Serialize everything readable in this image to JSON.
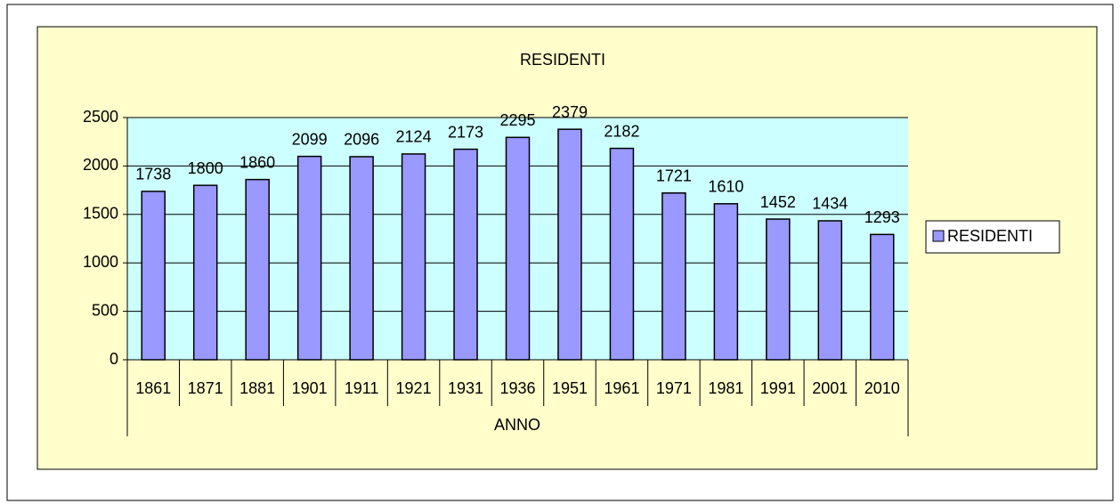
{
  "chart_data": {
    "type": "bar",
    "title": "RESIDENTI",
    "x_label": "ANNO",
    "categories": [
      "1861",
      "1871",
      "1881",
      "1901",
      "1911",
      "1921",
      "1931",
      "1936",
      "1951",
      "1961",
      "1971",
      "1981",
      "1991",
      "2001",
      "2010"
    ],
    "series": [
      {
        "name": "RESIDENTI",
        "color": "#9999ff",
        "values": [
          1738,
          1800,
          1860,
          2099,
          2096,
          2124,
          2173,
          2295,
          2379,
          2182,
          1721,
          1610,
          1452,
          1434,
          1293
        ]
      }
    ],
    "ylim": [
      0,
      2500
    ],
    "yticks": [
      0,
      500,
      1000,
      1500,
      2000,
      2500
    ],
    "grid": true,
    "legend": "right"
  }
}
